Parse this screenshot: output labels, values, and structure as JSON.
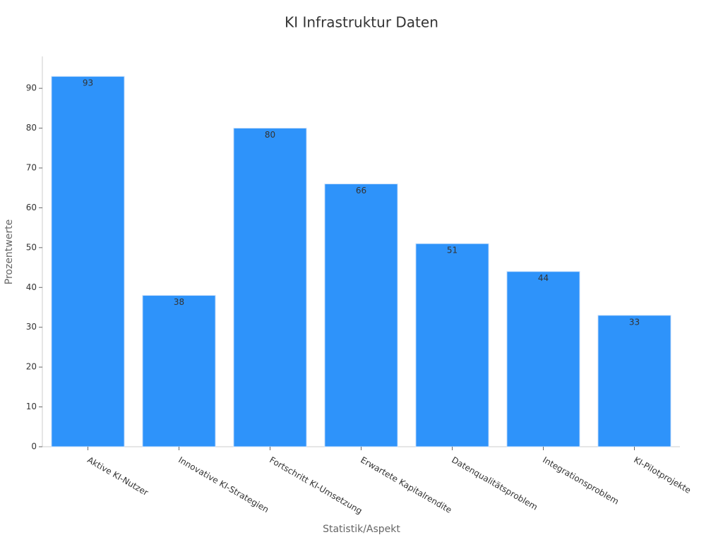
{
  "chart_data": {
    "type": "bar",
    "title": "KI Infrastruktur Daten",
    "x_label": "Statistik/Aspekt",
    "y_label": "Prozentwerte",
    "categories": [
      "Aktive KI-Nutzer",
      "Innovative KI-Strategien",
      "Fortschritt KI-Umsetzung",
      "Erwartete Kapitalrendite",
      "Datenqualitätsproblem",
      "Integrationsproblem",
      "KI-Pilotprojekte"
    ],
    "values": [
      93,
      38,
      80,
      66,
      51,
      44,
      33
    ],
    "color": "#2e93fa",
    "ylim": [
      0,
      98
    ],
    "yticks": [
      0,
      10,
      20,
      30,
      40,
      50,
      60,
      70,
      80,
      90
    ],
    "grid": false
  }
}
